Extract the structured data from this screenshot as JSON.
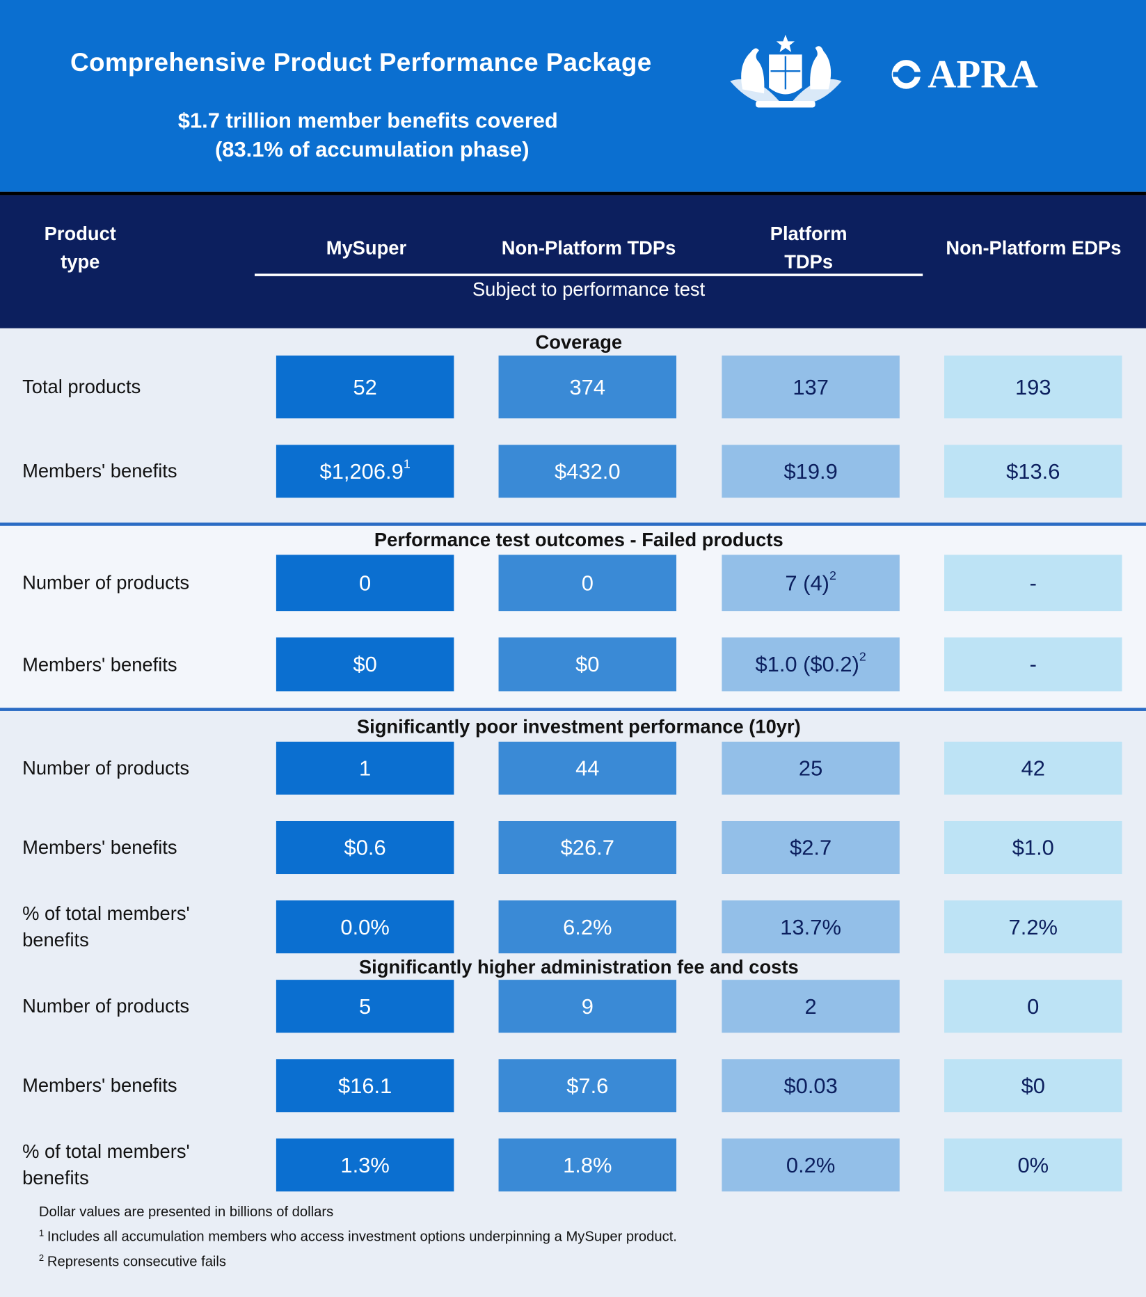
{
  "header": {
    "title": "Comprehensive Product Performance Package",
    "subtitle": [
      "$1.7 trillion member benefits covered",
      "(83.1% of accumulation phase)"
    ],
    "logo": "APRA"
  },
  "columns": {
    "label": [
      "Product",
      "type"
    ],
    "products": [
      [
        "MySuper"
      ],
      [
        "Non-Platform TDPs"
      ],
      [
        "Platform",
        "TDPs"
      ],
      [
        "Non-Platform EDPs"
      ]
    ],
    "group": "Subject to performance test"
  },
  "sections": [
    {
      "title": "Coverage",
      "rows": [
        {
          "label": [
            "Total products"
          ],
          "cells": [
            "52",
            "374",
            "137",
            "193"
          ]
        },
        {
          "label": [
            "Members' benefits"
          ],
          "cells": [
            {
              "text": "$1,206.9",
              "note": "1"
            },
            "$432.0",
            "$19.9",
            "$13.6"
          ]
        }
      ]
    },
    {
      "title": "Performance test outcomes - Failed products",
      "rows": [
        {
          "label": [
            "Number of products"
          ],
          "cells": [
            "0",
            "0",
            {
              "text": "7 (4)",
              "note": "2"
            },
            "-"
          ]
        },
        {
          "label": [
            "Members' benefits"
          ],
          "cells": [
            "$0",
            "$0",
            {
              "text": "$1.0 ($0.2)",
              "note": "2"
            },
            "-"
          ]
        }
      ]
    },
    {
      "title": "Significantly poor investment performance (10yr)",
      "rows": [
        {
          "label": [
            "Number of products"
          ],
          "cells": [
            "1",
            "44",
            "25",
            "42"
          ]
        },
        {
          "label": [
            "Members' benefits"
          ],
          "cells": [
            "$0.6",
            "$26.7",
            "$2.7",
            "$1.0"
          ]
        },
        {
          "label": [
            "% of total members'",
            "benefits"
          ],
          "cells": [
            "0.0%",
            "6.2%",
            "13.7%",
            "7.2%"
          ]
        }
      ]
    },
    {
      "title": "Significantly higher administration fee and costs",
      "rows": [
        {
          "label": [
            "Number of products"
          ],
          "cells": [
            "5",
            "9",
            "2",
            "0"
          ]
        },
        {
          "label": [
            "Members' benefits"
          ],
          "cells": [
            "$16.1",
            "$7.6",
            "$0.03",
            "$0"
          ]
        },
        {
          "label": [
            "% of total members'",
            "benefits"
          ],
          "cells": [
            "1.3%",
            "1.8%",
            "0.2%",
            "0%"
          ]
        }
      ]
    }
  ],
  "footnotes": [
    {
      "text": "Dollar values are presented in billions of dollars"
    },
    {
      "marker": "1",
      "text": "Includes all accumulation members who access investment options underpinning a MySuper product."
    },
    {
      "marker": "2",
      "text": "Represents consecutive fails"
    }
  ]
}
